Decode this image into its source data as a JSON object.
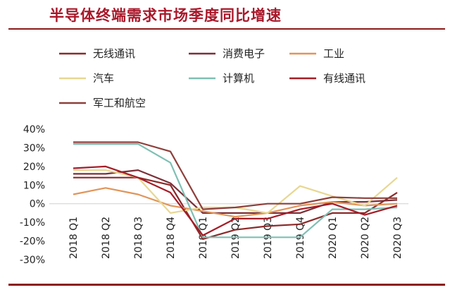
{
  "chart_data": {
    "type": "line",
    "title": "半导体终端需求市场季度同比增速",
    "categories": [
      "2018 Q1",
      "2018 Q2",
      "2018 Q3",
      "2018 Q4",
      "2019 Q1",
      "2019 Q2",
      "2019 Q3",
      "2019 Q4",
      "2020 Q1",
      "2020 Q2",
      "2020 Q3"
    ],
    "ylim": [
      -30,
      40
    ],
    "yticks": [
      "40%",
      "30%",
      "20%",
      "10%",
      "0%",
      "-10%",
      "-20%",
      "-30%"
    ],
    "legend_placement": "top-left",
    "grid": false,
    "series": [
      {
        "name": "无线通讯",
        "color": "#8c2a2a",
        "values": [
          14,
          14,
          14,
          10,
          -19,
          -14,
          -12,
          -11,
          -5,
          -5,
          6
        ]
      },
      {
        "name": "消费电子",
        "color": "#7b3038",
        "values": [
          16,
          16,
          18,
          11,
          -5,
          -5,
          -5,
          -5,
          1,
          1,
          2
        ]
      },
      {
        "name": "工业",
        "color": "#e0955a",
        "values": [
          5,
          8.5,
          5,
          -1,
          -4,
          -7,
          -5,
          -1,
          1,
          -1,
          0
        ]
      },
      {
        "name": "汽车",
        "color": "#e8d792",
        "values": [
          18,
          18,
          14,
          -5,
          -2,
          -2,
          -5,
          9.5,
          4,
          -1,
          14
        ]
      },
      {
        "name": "计算机",
        "color": "#7fbfb3",
        "values": [
          32,
          32,
          32,
          22,
          -18,
          -18,
          -18,
          -18,
          -3,
          -3,
          -2
        ]
      },
      {
        "name": "有线通讯",
        "color": "#a51c26",
        "values": [
          19,
          20,
          14,
          6,
          -17,
          -8,
          -8,
          -3,
          0,
          -6,
          -1
        ]
      },
      {
        "name": "军工和航空",
        "color": "#8e3f3a",
        "values": [
          33,
          33,
          33,
          28,
          -3,
          -2,
          0,
          0,
          3.5,
          3,
          3
        ]
      }
    ]
  }
}
